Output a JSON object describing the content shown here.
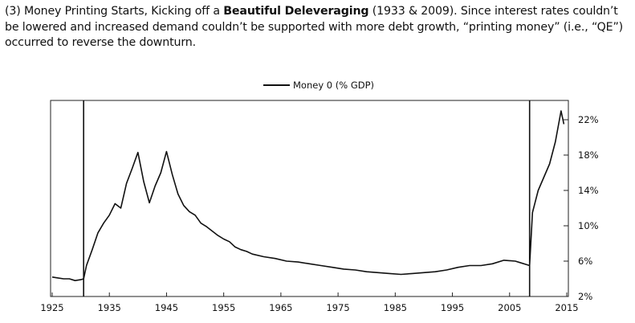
{
  "caption": {
    "prefix": "(3) Money Printing Starts, Kicking off a ",
    "bold": "Beautiful Deleveraging",
    "suffix": " (1933 & 2009).  Since interest rates couldn’t be lowered and increased demand couldn’t be supported with more debt growth, “printing money” (i.e., “QE”) occurred to reverse the downturn."
  },
  "chart_data": {
    "type": "line",
    "title": "",
    "xlabel": "",
    "ylabel": "",
    "legend_position": "top-center",
    "xlim": [
      1925,
      2015
    ],
    "ylim": [
      2,
      24
    ],
    "x_ticks": [
      1925,
      1935,
      1945,
      1955,
      1965,
      1975,
      1985,
      1995,
      2005,
      2015
    ],
    "x_tick_labels": [
      "1925",
      "1935",
      "1945",
      "1955",
      "1965",
      "1975",
      "1985",
      "1995",
      "2005",
      "2015"
    ],
    "y_ticks": [
      2,
      6,
      10,
      14,
      18,
      22
    ],
    "y_tick_labels": [
      "2%",
      "6%",
      "10%",
      "14%",
      "18%",
      "22%"
    ],
    "marker_lines": [
      {
        "x": 1930.5,
        "label": ""
      },
      {
        "x": 2008.5,
        "label": ""
      }
    ],
    "series": [
      {
        "name": "Money 0 (% GDP)",
        "color": "#111111",
        "x": [
          1925,
          1926,
          1927,
          1928,
          1929,
          1930,
          1930.5,
          1931,
          1932,
          1933,
          1934,
          1935,
          1936,
          1937,
          1938,
          1939,
          1940,
          1941,
          1942,
          1943,
          1944,
          1945,
          1946,
          1947,
          1948,
          1949,
          1950,
          1951,
          1952,
          1953,
          1954,
          1955,
          1956,
          1957,
          1958,
          1959,
          1960,
          1962,
          1964,
          1966,
          1968,
          1970,
          1972,
          1974,
          1976,
          1978,
          1980,
          1982,
          1984,
          1986,
          1988,
          1990,
          1992,
          1994,
          1996,
          1998,
          2000,
          2002,
          2004,
          2006,
          2007,
          2008,
          2008.5,
          2009,
          2010,
          2011,
          2012,
          2013,
          2014,
          2014.5
        ],
        "y": [
          4.2,
          4.1,
          4.0,
          4.0,
          3.8,
          3.9,
          4.0,
          5.5,
          7.3,
          9.2,
          10.3,
          11.2,
          12.5,
          12.0,
          14.8,
          16.5,
          18.3,
          15.0,
          12.6,
          14.5,
          16.0,
          18.4,
          15.8,
          13.6,
          12.3,
          11.6,
          11.2,
          10.3,
          9.9,
          9.4,
          8.9,
          8.5,
          8.2,
          7.6,
          7.3,
          7.1,
          6.8,
          6.5,
          6.3,
          6.0,
          5.9,
          5.7,
          5.5,
          5.3,
          5.1,
          5.0,
          4.8,
          4.7,
          4.6,
          4.5,
          4.6,
          4.7,
          4.8,
          5.0,
          5.3,
          5.5,
          5.5,
          5.7,
          6.1,
          6.0,
          5.8,
          5.6,
          5.5,
          11.5,
          14.0,
          15.5,
          17.0,
          19.5,
          23.0,
          21.5
        ]
      }
    ]
  }
}
